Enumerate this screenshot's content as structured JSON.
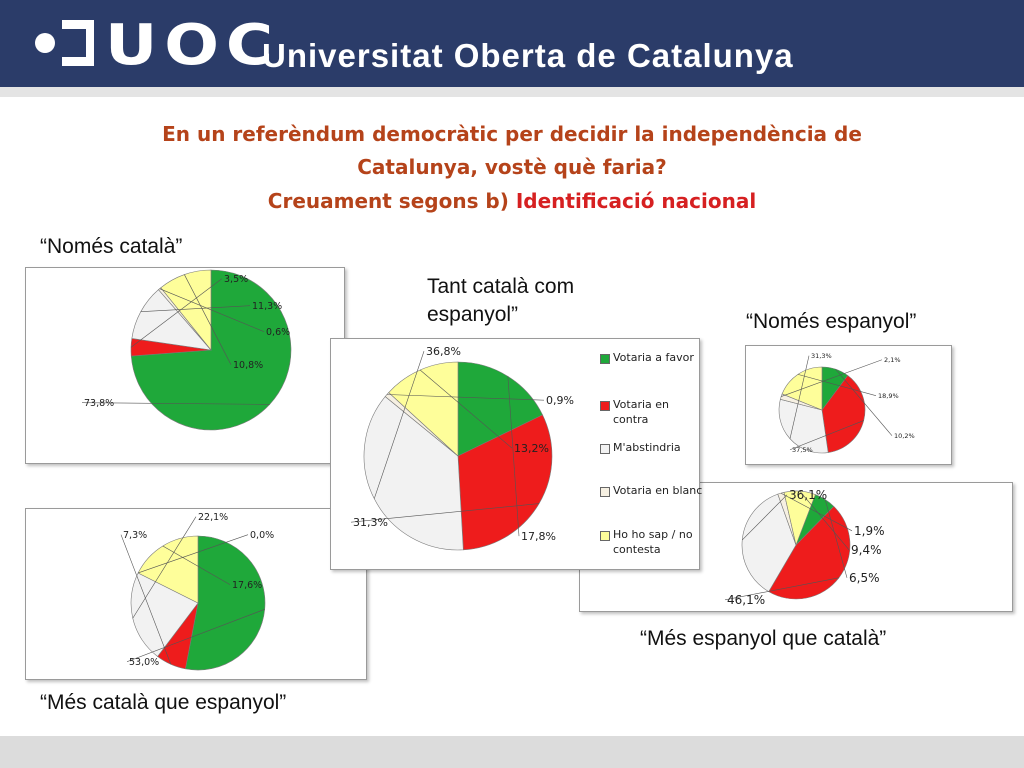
{
  "header": {
    "logo_mark": "UOC",
    "university_name": "Universitat Oberta de Catalunya",
    "bg_color": "#2b3c69"
  },
  "title": {
    "line1": "En un referèndum democràtic per decidir la independència de",
    "line2": "Catalunya, vostè què faria?",
    "line3_prefix": "Creuament segons  b) ",
    "line3_highlight": "Identificació nacional",
    "color": "#b5431a",
    "highlight_color": "#d62021"
  },
  "legend": {
    "items": [
      {
        "label": "Votaria a favor",
        "color": "#1fa83a"
      },
      {
        "label": "Votaria en contra",
        "color": "#ee1c1c"
      },
      {
        "label": "M'abstindria",
        "color": "#f2f2f2"
      },
      {
        "label": "Votaria en blanc",
        "color": "#f6f0e2"
      },
      {
        "label": "Ho ho sap / no contesta",
        "color": "#fefe9a"
      }
    ]
  },
  "chart_data": [
    {
      "type": "pie",
      "title": "“Només català”",
      "categories": [
        "Votaria a favor",
        "Votaria en contra",
        "M'abstindria",
        "Votaria en blanc",
        "Ho ho sap / no contesta"
      ],
      "values": [
        73.8,
        3.5,
        11.3,
        0.6,
        10.8
      ],
      "labels": [
        "73,8%",
        "3,5%",
        "11,3%",
        "0,6%",
        "10,8%"
      ]
    },
    {
      "type": "pie",
      "title": "“Més català que espanyol”",
      "categories": [
        "Votaria a favor",
        "Votaria en contra",
        "M'abstindria",
        "Votaria en blanc",
        "Ho ho sap / no contesta"
      ],
      "values": [
        53.0,
        7.3,
        22.1,
        0.0,
        17.6
      ],
      "labels": [
        "53,0%",
        "7,3%",
        "22,1%",
        "0,0%",
        "17,6%"
      ]
    },
    {
      "type": "pie",
      "title": "Tant català com espanyol”",
      "categories": [
        "Votaria a favor",
        "Votaria en contra",
        "M'abstindria",
        "Votaria en blanc",
        "Ho ho sap / no contesta"
      ],
      "values": [
        17.8,
        31.3,
        36.8,
        0.9,
        13.2
      ],
      "labels": [
        "17,8%",
        "31,3%",
        "36,8%",
        "0,9%",
        "13,2%"
      ]
    },
    {
      "type": "pie",
      "title": "“Només espanyol”",
      "categories": [
        "Votaria a favor",
        "Votaria en contra",
        "M'abstindria",
        "Votaria en blanc",
        "Ho ho sap / no contesta"
      ],
      "values": [
        10.2,
        37.5,
        31.3,
        2.1,
        18.9
      ],
      "labels": [
        "10,2%",
        "37,5%",
        "31,3%",
        "2,1%",
        "18,9%"
      ]
    },
    {
      "type": "pie",
      "title": "“Més espanyol que català”",
      "categories": [
        "Votaria a favor",
        "Votaria en contra",
        "M'abstindria",
        "Votaria en blanc",
        "Ho ho sap / no contesta"
      ],
      "values": [
        6.5,
        46.1,
        36.1,
        1.9,
        9.4
      ],
      "labels": [
        "6,5%",
        "46,1%",
        "36,1%",
        "1,9%",
        "9,4%"
      ]
    }
  ]
}
